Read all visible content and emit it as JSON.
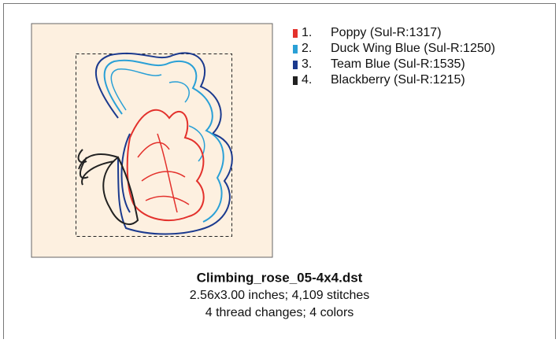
{
  "file": {
    "name": "Climbing_rose_05-4x4.dst",
    "details": "2.56x3.00 inches; 4,109 stitches",
    "summary": "4 thread changes; 4 colors"
  },
  "threads": [
    {
      "number": "1.",
      "name": "Poppy (Sul-R:1317)",
      "color": "#e3312c"
    },
    {
      "number": "2.",
      "name": "Duck Wing Blue (Sul-R:1250)",
      "color": "#2aa0d6"
    },
    {
      "number": "3.",
      "name": "Team Blue (Sul-R:1535)",
      "color": "#1b3a8e"
    },
    {
      "number": "4.",
      "name": "Blackberry (Sul-R:1215)",
      "color": "#222222"
    }
  ]
}
